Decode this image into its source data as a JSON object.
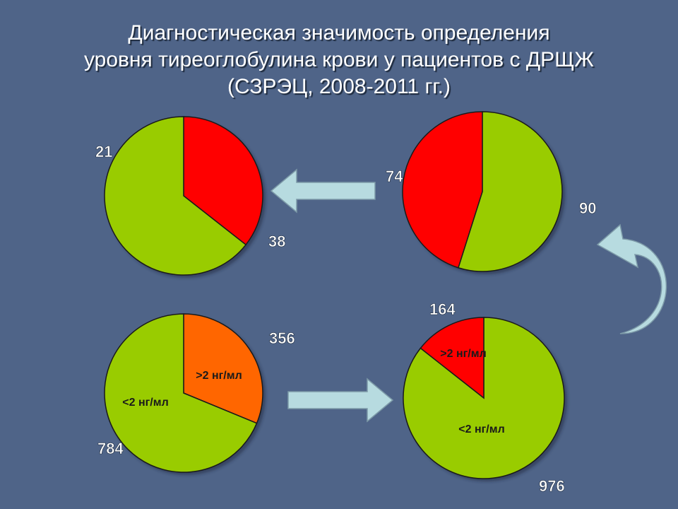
{
  "title": {
    "line1": "Диагностическая значимость определения",
    "line2": "уровня тиреоглобулина крови у пациентов с ДРЩЖ",
    "line3": "(СЗРЭЦ, 2008-2011 гг.)"
  },
  "colors": {
    "background": "#4f6488",
    "green": "#99cc00",
    "red": "#ff0000",
    "orange": "#ff6600",
    "arrow": "#b7dbe0"
  },
  "chart_data": [
    {
      "type": "pie",
      "slices": [
        {
          "label": "",
          "value": 21,
          "value_label": "21",
          "color": "#ff0000"
        },
        {
          "label": "",
          "value": 38,
          "value_label": "38",
          "color": "#99cc00"
        }
      ]
    },
    {
      "type": "pie",
      "slices": [
        {
          "label": "",
          "value": 90,
          "value_label": "90",
          "color": "#99cc00"
        },
        {
          "label": "",
          "value": 74,
          "value_label": "74",
          "color": "#ff0000"
        }
      ]
    },
    {
      "type": "pie",
      "slices": [
        {
          "label": ">2 нг/мл",
          "value": 356,
          "value_label": "356",
          "color": "#ff6600"
        },
        {
          "label": "<2 нг/мл",
          "value": 784,
          "value_label": "784",
          "color": "#99cc00"
        }
      ]
    },
    {
      "type": "pie",
      "slices": [
        {
          "label": "<2 нг/мл",
          "value": 976,
          "value_label": "976",
          "color": "#99cc00"
        },
        {
          "label": ">2 нг/мл",
          "value": 164,
          "value_label": "164",
          "color": "#ff0000"
        }
      ]
    }
  ]
}
